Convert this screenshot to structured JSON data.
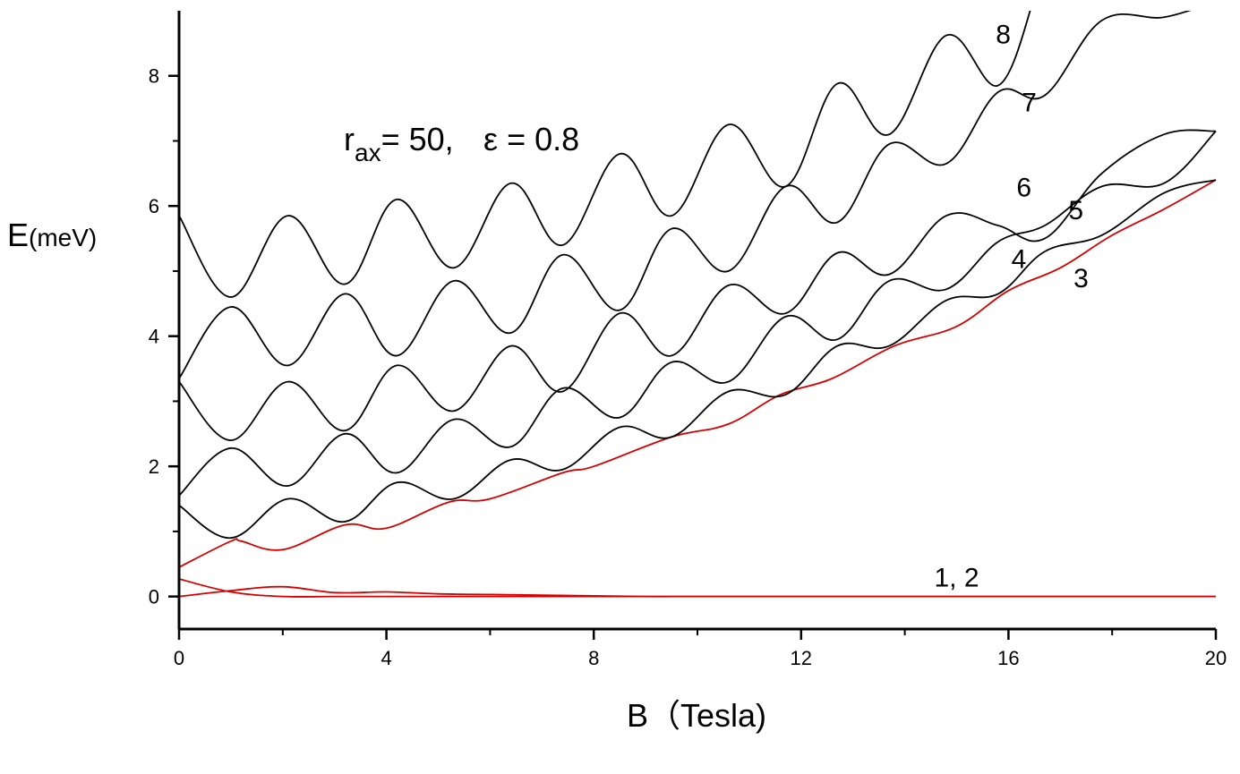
{
  "chart_data": {
    "type": "line",
    "annotation": {
      "r_prefix": "r",
      "r_sub": "ax",
      "r_value": "= 50,",
      "eps_symbol": "ε",
      "eps_value": "= 0.8"
    },
    "xlabel": "B（Tesla)",
    "ylabel": {
      "main": "E",
      "unit": "(meV)"
    },
    "xlim": [
      0,
      20
    ],
    "ylim": [
      -0.5,
      9
    ],
    "xticks": [
      {
        "value": 0,
        "label": "0"
      },
      {
        "value": 4,
        "label": "4"
      },
      {
        "value": 8,
        "label": "8"
      },
      {
        "value": 12,
        "label": "12"
      },
      {
        "value": 16,
        "label": "16"
      },
      {
        "value": 20,
        "label": "20"
      }
    ],
    "yticks": [
      {
        "value": 0,
        "label": "0"
      },
      {
        "value": 2,
        "label": "2"
      },
      {
        "value": 4,
        "label": "4"
      },
      {
        "value": 6,
        "label": "6"
      },
      {
        "value": 8,
        "label": "8"
      }
    ],
    "minor_xticks": [
      2,
      6,
      10,
      14,
      18
    ],
    "minor_yticks": [
      1,
      3,
      5,
      7
    ],
    "curve_labels": [
      {
        "text": "1, 2",
        "x": 15.0,
        "y": 0.15
      },
      {
        "text": "3",
        "x": 17.4,
        "y": 4.75
      },
      {
        "text": "4",
        "x": 16.2,
        "y": 5.05
      },
      {
        "text": "5",
        "x": 17.3,
        "y": 5.8
      },
      {
        "text": "6",
        "x": 16.3,
        "y": 6.15
      },
      {
        "text": "7",
        "x": 16.4,
        "y": 7.45
      },
      {
        "text": "8",
        "x": 15.9,
        "y": 8.5
      }
    ],
    "series": [
      {
        "color": "#d40000",
        "x": [
          0,
          1,
          2,
          3,
          4,
          5,
          6,
          7,
          8,
          9,
          10,
          12,
          14,
          16,
          18,
          20
        ],
        "y": [
          0.27,
          0.07,
          0.0,
          0.0,
          0.0,
          0.0,
          0.0,
          0.0,
          0.0,
          0.0,
          0.0,
          0.0,
          0.0,
          0.0,
          0.0,
          0.0
        ]
      },
      {
        "color": "#d40000",
        "x": [
          0,
          1,
          2,
          3,
          4,
          5,
          6,
          7,
          8,
          9,
          10,
          12,
          14,
          16,
          18,
          20
        ],
        "y": [
          0.0,
          0.09,
          0.15,
          0.06,
          0.07,
          0.04,
          0.03,
          0.02,
          0.01,
          0.0,
          0.0,
          0.0,
          0.0,
          0.0,
          0.0,
          0.0
        ]
      },
      {
        "color": "#d40000",
        "x": [
          0,
          1,
          1.2,
          2,
          3.2,
          4,
          5.2,
          6,
          7.4,
          8,
          9.5,
          10.6,
          11.6,
          12.6,
          13.8,
          15,
          16,
          17,
          18,
          19,
          20
        ],
        "y": [
          0.45,
          0.85,
          0.85,
          0.72,
          1.1,
          1.05,
          1.45,
          1.5,
          1.9,
          2.0,
          2.45,
          2.65,
          3.1,
          3.35,
          3.85,
          4.15,
          4.7,
          5.05,
          5.55,
          5.95,
          6.4
        ]
      },
      {
        "color": "#000000",
        "x": [
          0,
          1,
          2.1,
          3.2,
          4.2,
          5.3,
          6.4,
          7.4,
          8.5,
          9.5,
          10.6,
          11.7,
          12.7,
          13.7,
          14.8,
          15.8,
          16.7,
          17.8,
          19,
          20
        ],
        "y": [
          1.4,
          0.9,
          1.5,
          1.15,
          1.75,
          1.5,
          2.1,
          1.95,
          2.6,
          2.45,
          3.15,
          3.1,
          3.85,
          3.85,
          4.55,
          4.65,
          5.3,
          5.55,
          6.2,
          6.4
        ]
      },
      {
        "color": "#000000",
        "x": [
          0,
          1,
          2.1,
          3.2,
          4.2,
          5.3,
          6.4,
          7.4,
          8.5,
          9.5,
          10.6,
          11.7,
          12.7,
          13.7,
          14.8,
          15.8,
          16.7,
          17.8,
          19,
          20
        ],
        "y": [
          1.55,
          2.28,
          1.7,
          2.5,
          1.9,
          2.72,
          2.3,
          3.2,
          2.75,
          3.6,
          3.3,
          4.3,
          3.95,
          4.85,
          4.72,
          5.45,
          5.7,
          6.3,
          6.35,
          7.15
        ]
      },
      {
        "color": "#000000",
        "x": [
          0,
          1,
          2.1,
          3.2,
          4.2,
          5.3,
          6.4,
          7.4,
          8.5,
          9.5,
          10.6,
          11.7,
          12.7,
          13.7,
          14.8,
          15.8,
          16.7,
          17.8,
          19,
          20
        ],
        "y": [
          3.3,
          2.4,
          3.3,
          2.55,
          3.55,
          2.85,
          3.85,
          3.15,
          4.35,
          3.7,
          4.78,
          4.35,
          5.28,
          4.95,
          5.85,
          5.7,
          5.5,
          6.5,
          7.1,
          7.15
        ]
      },
      {
        "color": "#000000",
        "x": [
          0,
          1,
          2.1,
          3.2,
          4.2,
          5.3,
          6.4,
          7.4,
          8.5,
          9.5,
          10.6,
          11.7,
          12.7,
          13.7,
          14.8,
          15.8,
          16.7,
          17.8,
          19,
          20
        ],
        "y": [
          3.35,
          4.45,
          3.55,
          4.65,
          3.7,
          4.85,
          4.05,
          5.25,
          4.4,
          5.65,
          5.0,
          6.3,
          5.75,
          6.95,
          6.65,
          7.75,
          7.7,
          8.85,
          8.9,
          9.15
        ]
      },
      {
        "color": "#000000",
        "x": [
          0,
          1,
          2.1,
          3.2,
          4.2,
          5.3,
          6.4,
          7.4,
          8.5,
          9.5,
          10.6,
          11.7,
          12.7,
          13.7,
          14.8,
          15.8,
          16.5
        ],
        "y": [
          5.85,
          4.6,
          5.85,
          4.8,
          6.1,
          5.05,
          6.35,
          5.4,
          6.8,
          5.85,
          7.25,
          6.3,
          7.88,
          7.1,
          8.62,
          7.85,
          9.2
        ]
      }
    ]
  }
}
